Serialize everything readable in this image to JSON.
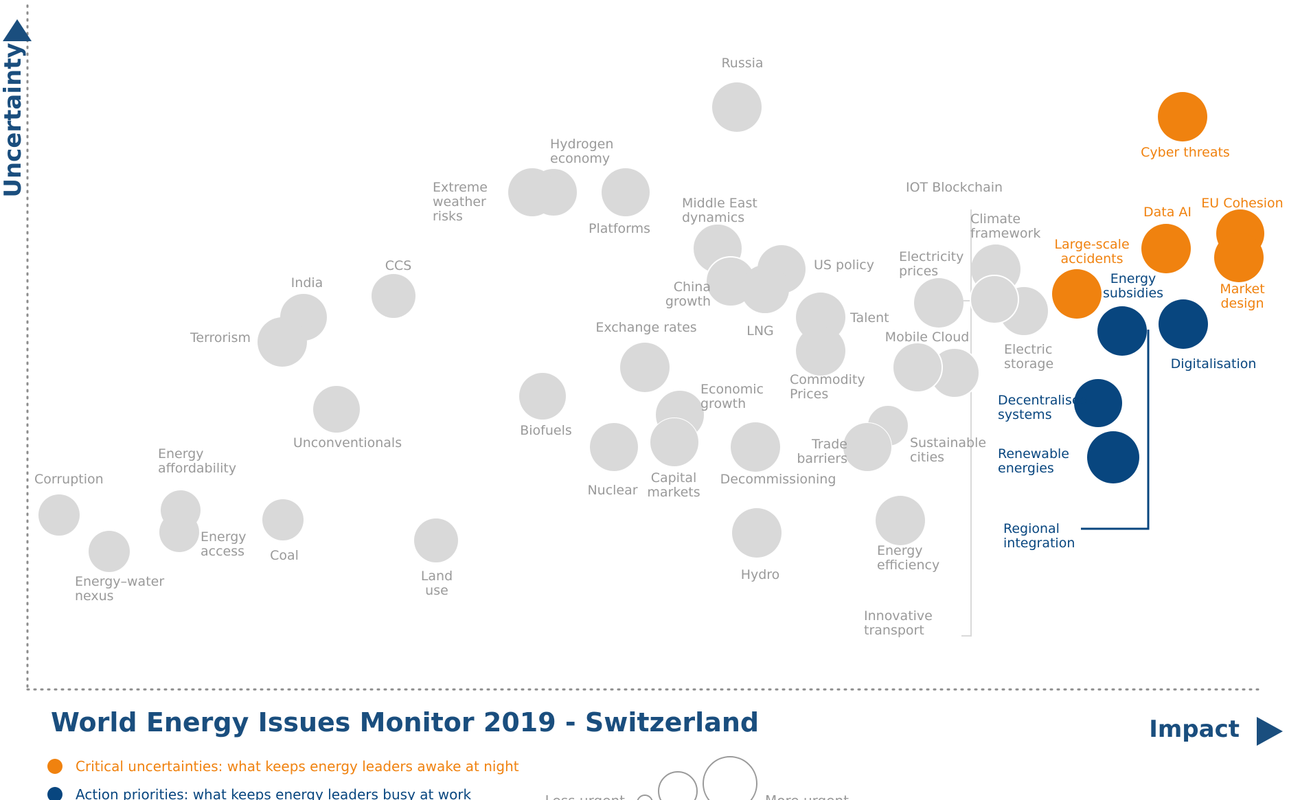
{
  "chart_data": {
    "type": "scatter",
    "title": "World Energy Issues Monitor 2019 - Switzerland",
    "xlabel": "Impact",
    "ylabel": "Uncertainty",
    "colors": {
      "grey": "#d9d9d9",
      "greyText": "#9a9a9a",
      "orange": "#f0820f",
      "blue": "#08467f"
    },
    "legend": [
      {
        "label": "Critical uncertainties: what keeps energy leaders awake at night",
        "category": "orange"
      },
      {
        "label": "Action priorities: what keeps energy leaders busy at work",
        "category": "blue"
      }
    ],
    "size_legend": {
      "less": "Less urgent",
      "more": "More urgent"
    },
    "points": [
      {
        "lines": [
          "Russia"
        ],
        "category": "grey"
      },
      {
        "lines": [
          "Cyber threats"
        ],
        "category": "orange"
      },
      {
        "lines": [
          "Hydrogen",
          "economy"
        ],
        "category": "grey"
      },
      {
        "lines": [
          "Extreme",
          "weather",
          "risks"
        ],
        "category": "grey"
      },
      {
        "lines": [
          "Platforms"
        ],
        "category": "grey"
      },
      {
        "lines": [
          "IOT Blockchain"
        ],
        "category": "grey"
      },
      {
        "lines": [
          "Climate",
          "framework"
        ],
        "category": "grey"
      },
      {
        "lines": [
          "Middle East",
          "dynamics"
        ],
        "category": "grey"
      },
      {
        "lines": [
          "Data AI"
        ],
        "category": "orange"
      },
      {
        "lines": [
          "EU Cohesion"
        ],
        "category": "orange"
      },
      {
        "lines": [
          "Market",
          "design"
        ],
        "category": "orange"
      },
      {
        "lines": [
          "Large-scale",
          "accidents"
        ],
        "category": "orange"
      },
      {
        "lines": [
          "US policy"
        ],
        "category": "grey"
      },
      {
        "lines": [
          "Electricity",
          "prices"
        ],
        "category": "grey"
      },
      {
        "lines": [
          "CCS"
        ],
        "category": "grey"
      },
      {
        "lines": [
          "India"
        ],
        "category": "grey"
      },
      {
        "lines": [
          "China",
          "growth"
        ],
        "category": "grey"
      },
      {
        "lines": [
          "LNG"
        ],
        "category": "grey"
      },
      {
        "lines": [
          "Energy",
          "subsidies"
        ],
        "category": "blue"
      },
      {
        "lines": [
          "Talent"
        ],
        "category": "grey"
      },
      {
        "lines": [
          "Exchange rates"
        ],
        "category": "grey"
      },
      {
        "lines": [
          "Terrorism"
        ],
        "category": "grey"
      },
      {
        "lines": [
          "Mobile Cloud"
        ],
        "category": "grey"
      },
      {
        "lines": [
          "Electric",
          "storage"
        ],
        "category": "grey"
      },
      {
        "lines": [
          "Digitalisation"
        ],
        "category": "blue"
      },
      {
        "lines": [
          "Commodity",
          "Prices"
        ],
        "category": "grey"
      },
      {
        "lines": [
          "Economic",
          "growth"
        ],
        "category": "grey"
      },
      {
        "lines": [
          "Decentralised",
          "systems"
        ],
        "category": "blue"
      },
      {
        "lines": [
          "Biofuels"
        ],
        "category": "grey"
      },
      {
        "lines": [
          "Unconventionals"
        ],
        "category": "grey"
      },
      {
        "lines": [
          "Trade",
          "barriers"
        ],
        "category": "grey"
      },
      {
        "lines": [
          "Sustainable",
          "cities"
        ],
        "category": "grey"
      },
      {
        "lines": [
          "Renewable",
          "energies"
        ],
        "category": "blue"
      },
      {
        "lines": [
          "Energy",
          "affordability"
        ],
        "category": "grey"
      },
      {
        "lines": [
          "Corruption"
        ],
        "category": "grey"
      },
      {
        "lines": [
          "Nuclear"
        ],
        "category": "grey"
      },
      {
        "lines": [
          "Capital",
          "markets"
        ],
        "category": "grey"
      },
      {
        "lines": [
          "Decommissioning"
        ],
        "category": "grey"
      },
      {
        "lines": [
          "Energy",
          "access"
        ],
        "category": "grey"
      },
      {
        "lines": [
          "Coal"
        ],
        "category": "grey"
      },
      {
        "lines": [
          "Regional",
          "integration"
        ],
        "category": "blue"
      },
      {
        "lines": [
          "Energy–water",
          "nexus"
        ],
        "category": "grey"
      },
      {
        "lines": [
          "Land",
          "use"
        ],
        "category": "grey"
      },
      {
        "lines": [
          "Hydro"
        ],
        "category": "grey"
      },
      {
        "lines": [
          "Energy",
          "efficiency"
        ],
        "category": "grey"
      },
      {
        "lines": [
          "Innovative",
          "transport"
        ],
        "category": "grey"
      }
    ]
  }
}
